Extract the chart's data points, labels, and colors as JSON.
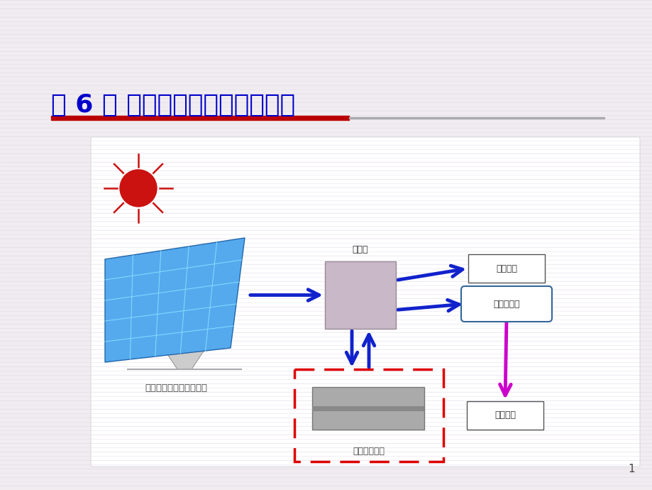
{
  "title": "第 6 章 光伏储能及其充放电模式",
  "title_color": "#0000CC",
  "title_fontsize": 26,
  "bg_color": "#F0EEF0",
  "red_line_color": "#CC0000",
  "page_number": "1",
  "label_controller": "控制器",
  "label_solar": "太阳能电池组件（方阵）",
  "label_battery": "蓄电池（组）",
  "label_dc_load": "直流负载",
  "label_inverter": "交流逆变器",
  "label_ac_load": "交流负载"
}
